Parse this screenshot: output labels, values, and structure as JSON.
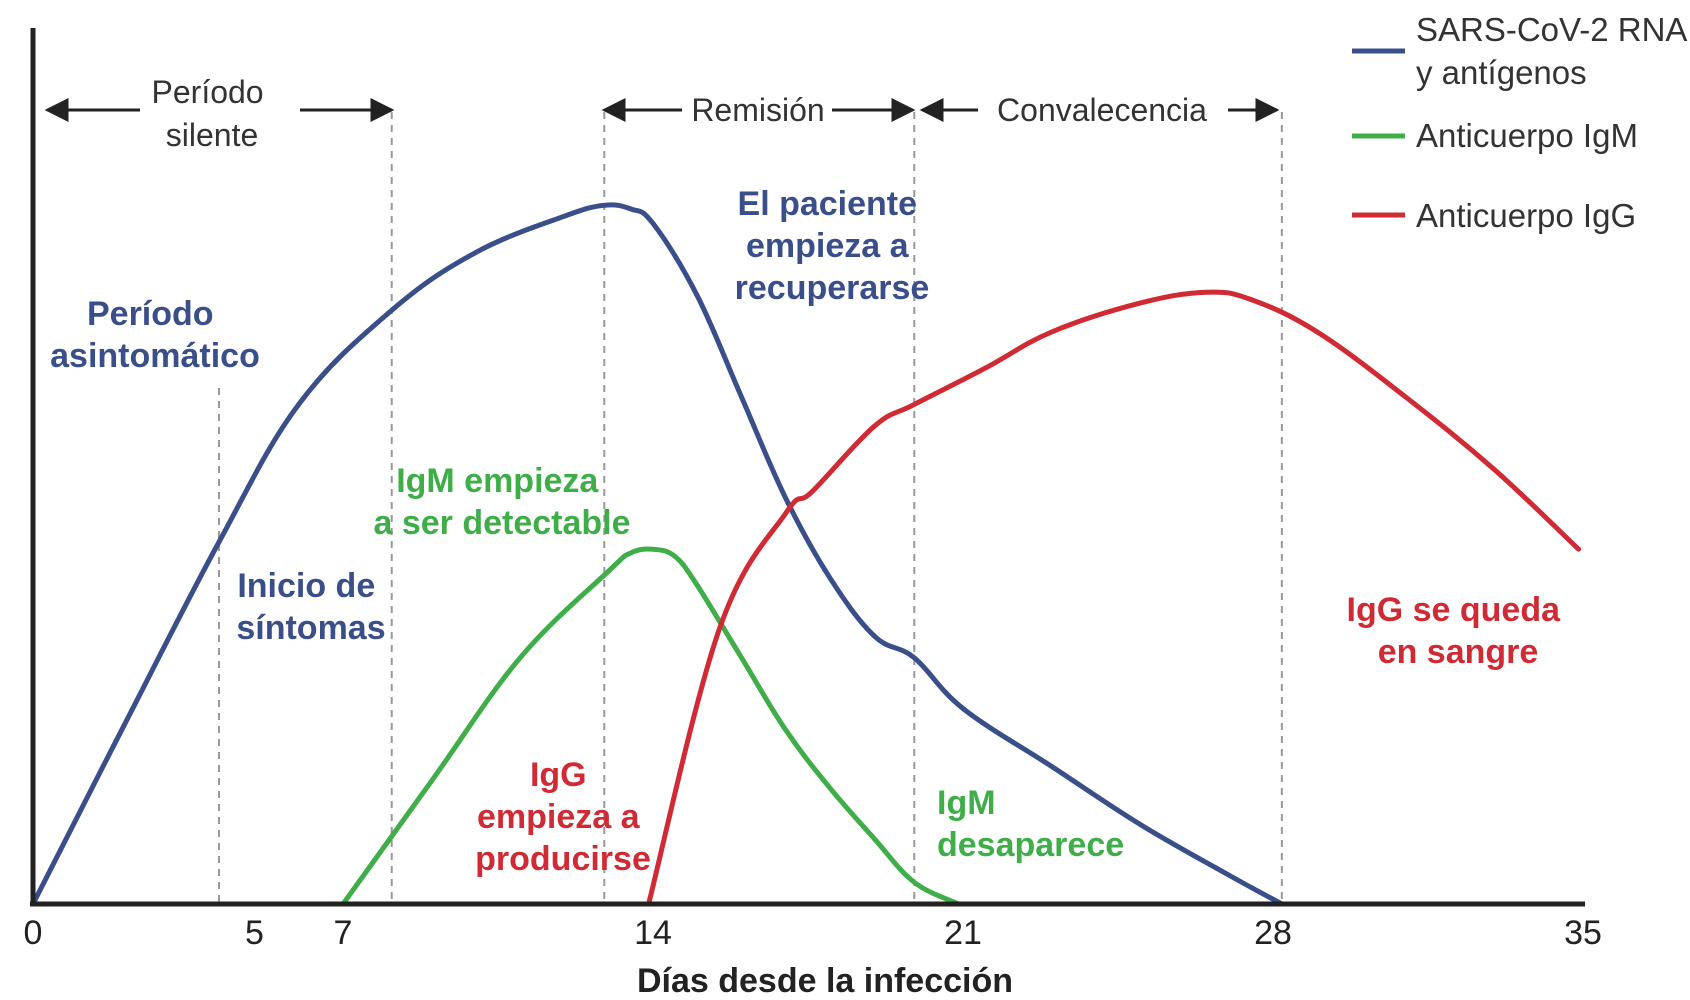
{
  "colors": {
    "blue": "#3a4f8a",
    "green": "#3fae49",
    "red": "#d02b35",
    "axis": "#222222",
    "grid": "#999999"
  },
  "chart_data": {
    "type": "line",
    "xlabel": "Días desde la infección",
    "ylabel": "",
    "xlim": [
      0,
      35
    ],
    "ylim": [
      0,
      100
    ],
    "xticks": [
      0,
      5,
      7,
      14,
      21,
      28,
      35
    ],
    "xtick_labels": [
      "0",
      "5",
      "7",
      "14",
      "21",
      "28",
      "35"
    ],
    "guides": [
      4.2,
      8.1,
      12.9,
      19.9,
      28.2
    ],
    "legend_position": "top-right",
    "series": [
      {
        "name": "SARS-CoV-2 RNA y antígenos",
        "color": "#3a4f8a",
        "x": [
          0,
          2,
          4.2,
          6,
          8.1,
          10,
          12,
          12.9,
          13.5,
          14,
          15,
          16,
          17,
          18,
          19,
          19.9,
          21,
          23,
          25,
          27,
          28.2
        ],
        "y": [
          0,
          24,
          50,
          69,
          82,
          90,
          95,
          96.5,
          96,
          94,
          84,
          70,
          56,
          45,
          37,
          34,
          27,
          19,
          11,
          4,
          0
        ]
      },
      {
        "name": "Anticuerpo IgM",
        "color": "#3fae49",
        "x": [
          7,
          9,
          11,
          13,
          13.5,
          14,
          14.5,
          15,
          16,
          17,
          18,
          19,
          19.9,
          20.9
        ],
        "y": [
          0,
          17,
          34,
          46,
          48.5,
          49,
          48,
          44,
          34,
          24,
          16,
          9,
          3,
          0
        ]
      },
      {
        "name": "Anticuerpo IgG",
        "color": "#d02b35",
        "x": [
          13.9,
          15.5,
          17,
          17.6,
          19,
          19.9,
          21.5,
          23,
          25,
          26.5,
          27.5,
          29,
          31,
          33,
          34.9
        ],
        "y": [
          0,
          38,
          54,
          57,
          66,
          69,
          74,
          79,
          83,
          84.5,
          83.5,
          79,
          70,
          60,
          49
        ]
      }
    ],
    "annotations": {
      "periodo_silente": [
        "Período",
        "silente"
      ],
      "remision": "Remisión",
      "convalecencia": "Convalecencia",
      "asintomatico": [
        "Período",
        "asintomático"
      ],
      "inicio": [
        "Inicio de",
        "síntomas"
      ],
      "recuperarse": [
        "El paciente",
        "empieza a",
        "recuperarse"
      ],
      "igm_detectable": [
        "IgM empieza",
        "a ser detectable"
      ],
      "igg_producirse": [
        "IgG",
        "empieza a",
        "producirse"
      ],
      "igm_desaparece": [
        "IgM",
        "desaparece"
      ],
      "igg_sangre": [
        "IgG se queda",
        "en sangre"
      ]
    }
  }
}
